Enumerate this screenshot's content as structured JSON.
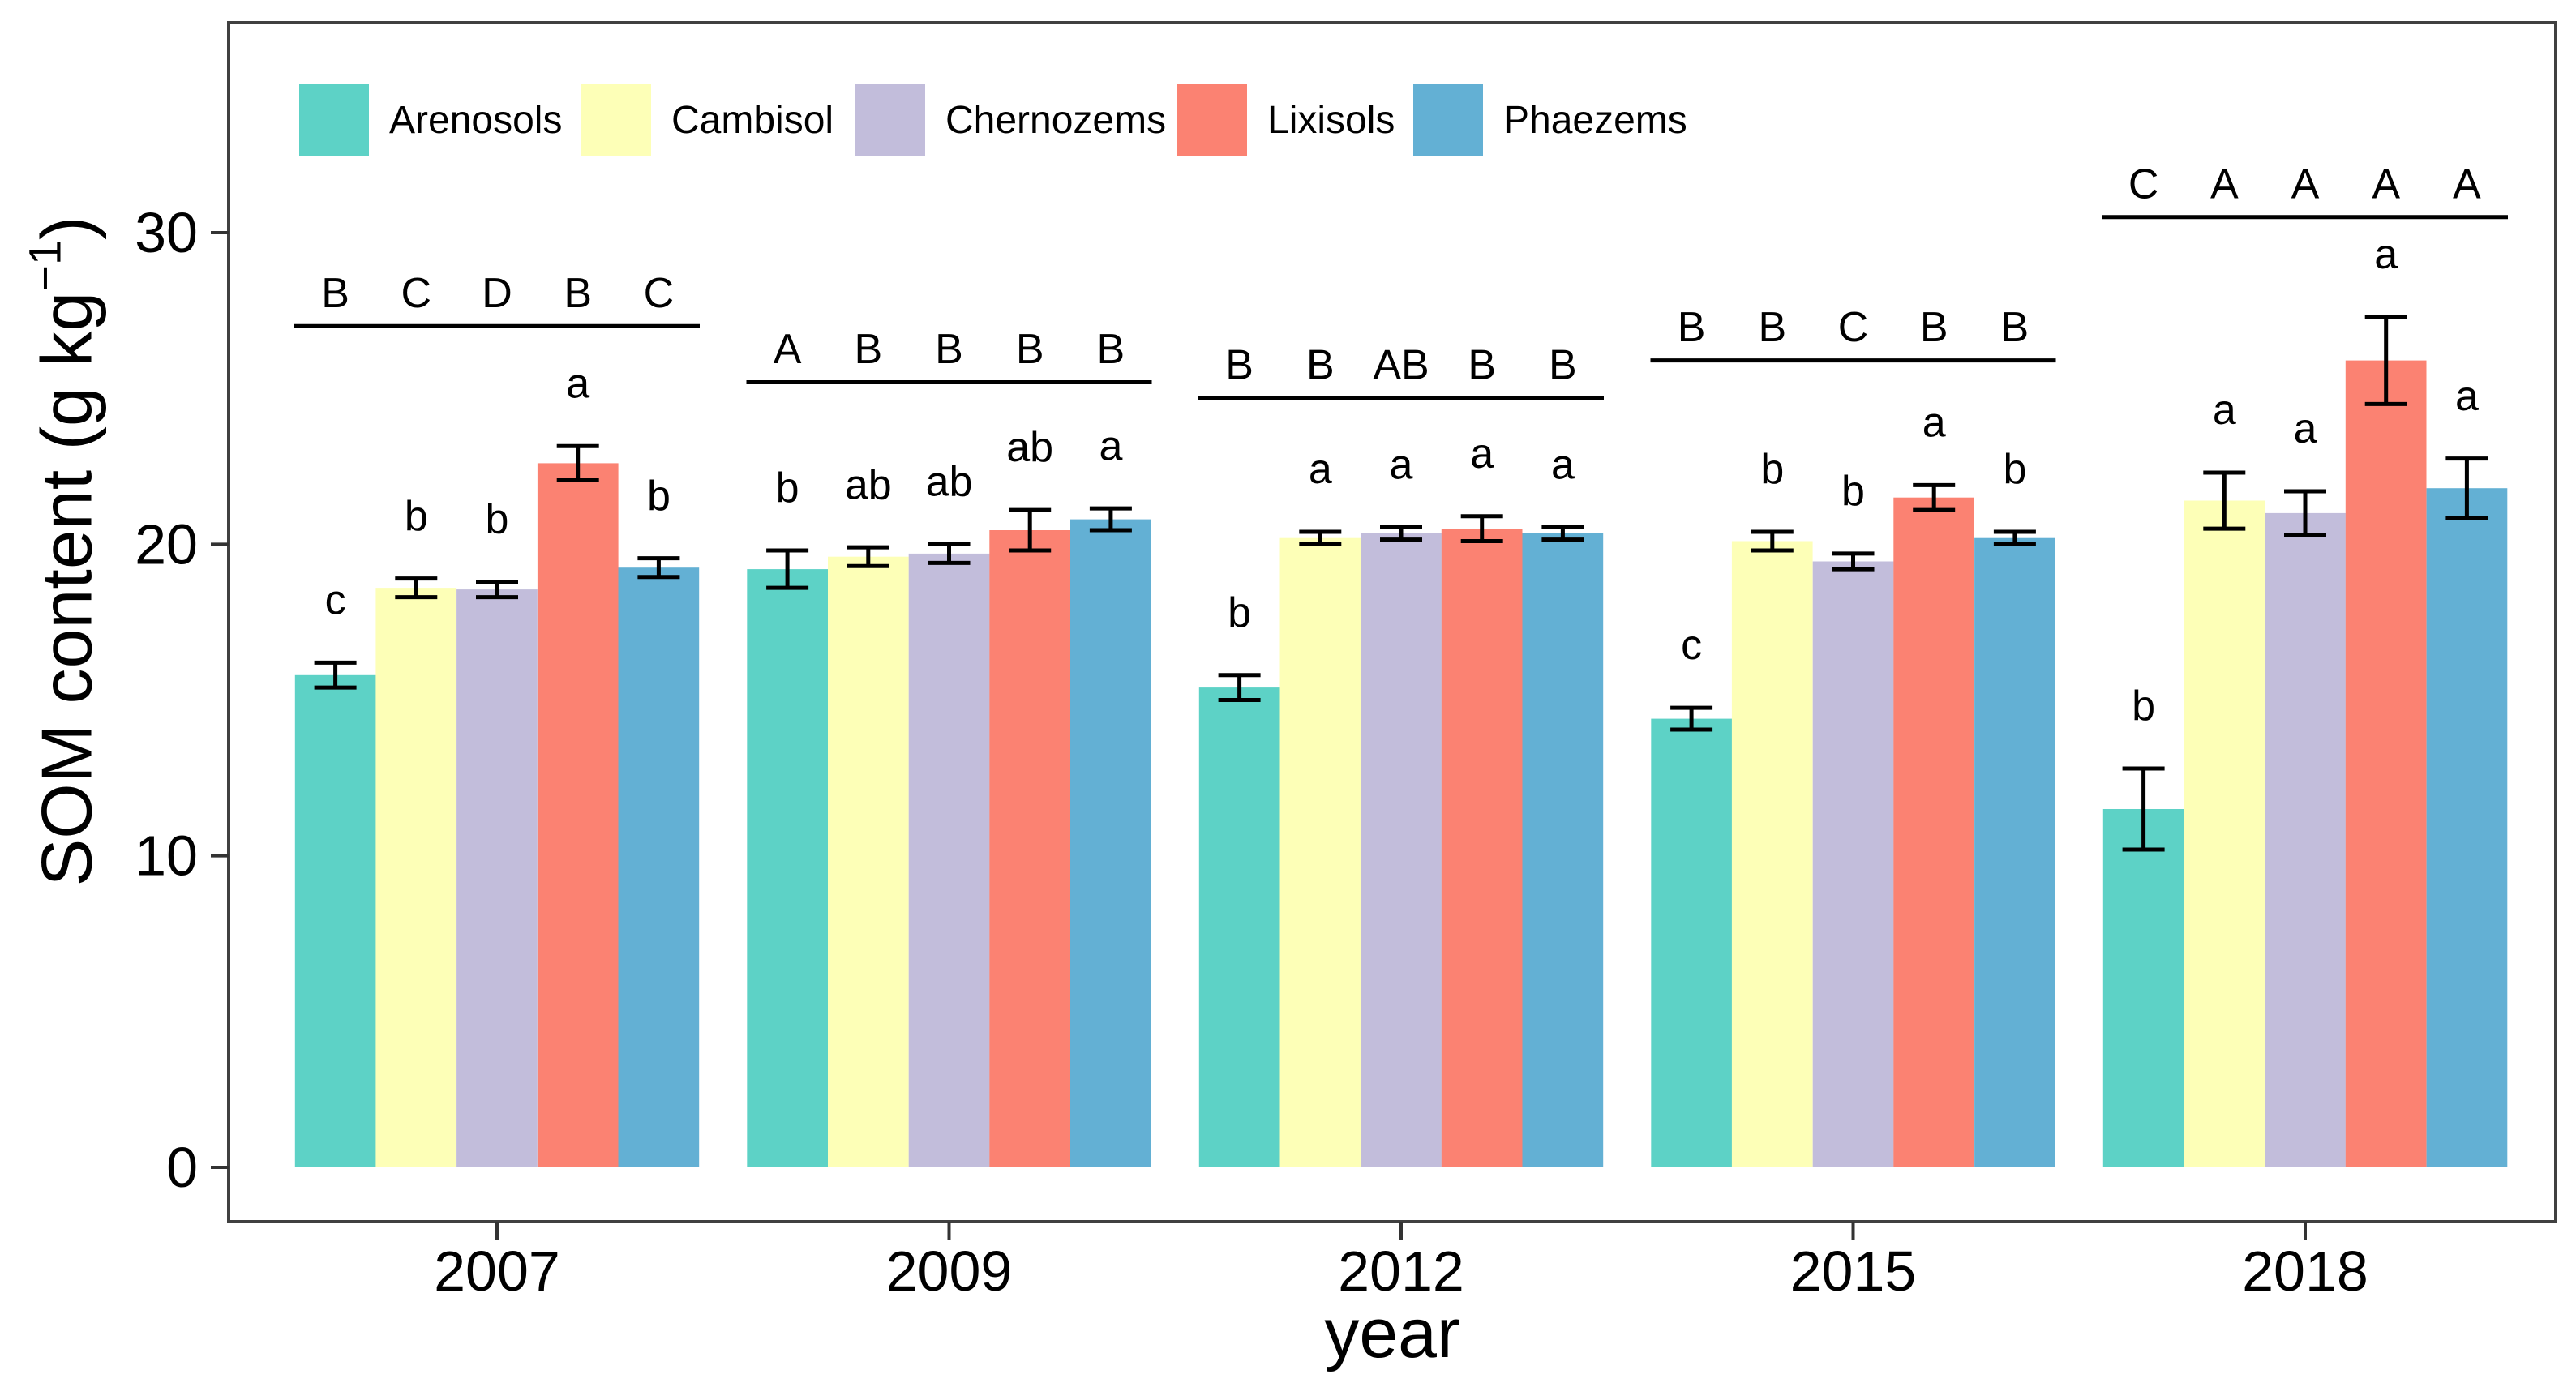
{
  "figure": {
    "x_axis_title": "year",
    "y_axis_title_main": "SOM content (g kg",
    "y_axis_title_sup": "−1",
    "y_axis_title_close": ")"
  },
  "chart_data": {
    "type": "bar",
    "title": "",
    "xlabel": "year",
    "ylabel": "SOM content (g kg⁻¹)",
    "ylim": [
      0,
      36.7
    ],
    "yticks": [
      0,
      10,
      20,
      30
    ],
    "grid": false,
    "legend_position": "top-left-inside",
    "categories": [
      "2007",
      "2009",
      "2012",
      "2015",
      "2018"
    ],
    "series": [
      {
        "name": "Arenosols",
        "color": "#5dd2c6",
        "values": [
          15.8,
          19.2,
          15.4,
          14.4,
          11.5
        ],
        "errors": [
          0.4,
          0.6,
          0.4,
          0.35,
          1.3
        ],
        "letters_lower": [
          "c",
          "b",
          "b",
          "c",
          "b"
        ]
      },
      {
        "name": "Cambisol",
        "color": "#fdffb7",
        "values": [
          18.6,
          19.6,
          20.2,
          20.1,
          21.4
        ],
        "errors": [
          0.3,
          0.3,
          0.2,
          0.3,
          0.9
        ],
        "letters_lower": [
          "b",
          "ab",
          "a",
          "b",
          "a"
        ]
      },
      {
        "name": "Chernozems",
        "color": "#c2bddb",
        "values": [
          18.55,
          19.7,
          20.35,
          19.45,
          21.0
        ],
        "errors": [
          0.25,
          0.3,
          0.2,
          0.25,
          0.7
        ],
        "letters_lower": [
          "b",
          "ab",
          "a",
          "b",
          "a"
        ]
      },
      {
        "name": "Lixisols",
        "color": "#fb8272",
        "values": [
          22.6,
          20.45,
          20.5,
          21.5,
          25.9
        ],
        "errors": [
          0.55,
          0.65,
          0.4,
          0.4,
          1.4
        ],
        "letters_lower": [
          "a",
          "ab",
          "a",
          "a",
          "a"
        ]
      },
      {
        "name": "Phaezems",
        "color": "#63b0d4",
        "values": [
          19.25,
          20.8,
          20.35,
          20.2,
          21.8
        ],
        "errors": [
          0.3,
          0.35,
          0.2,
          0.2,
          0.95
        ],
        "letters_lower": [
          "b",
          "a",
          "a",
          "b",
          "a"
        ]
      }
    ],
    "sig_lines": [
      {
        "category": "2007",
        "y": 27.0,
        "letters_upper": [
          "B",
          "C",
          "D",
          "B",
          "C"
        ]
      },
      {
        "category": "2009",
        "y": 25.2,
        "letters_upper": [
          "A",
          "B",
          "B",
          "B",
          "B"
        ]
      },
      {
        "category": "2012",
        "y": 24.7,
        "letters_upper": [
          "B",
          "B",
          "AB",
          "B",
          "B"
        ]
      },
      {
        "category": "2015",
        "y": 25.9,
        "letters_upper": [
          "B",
          "B",
          "C",
          "B",
          "B"
        ]
      },
      {
        "category": "2018",
        "y": 30.5,
        "letters_upper": [
          "C",
          "A",
          "A",
          "A",
          "A"
        ]
      }
    ]
  }
}
